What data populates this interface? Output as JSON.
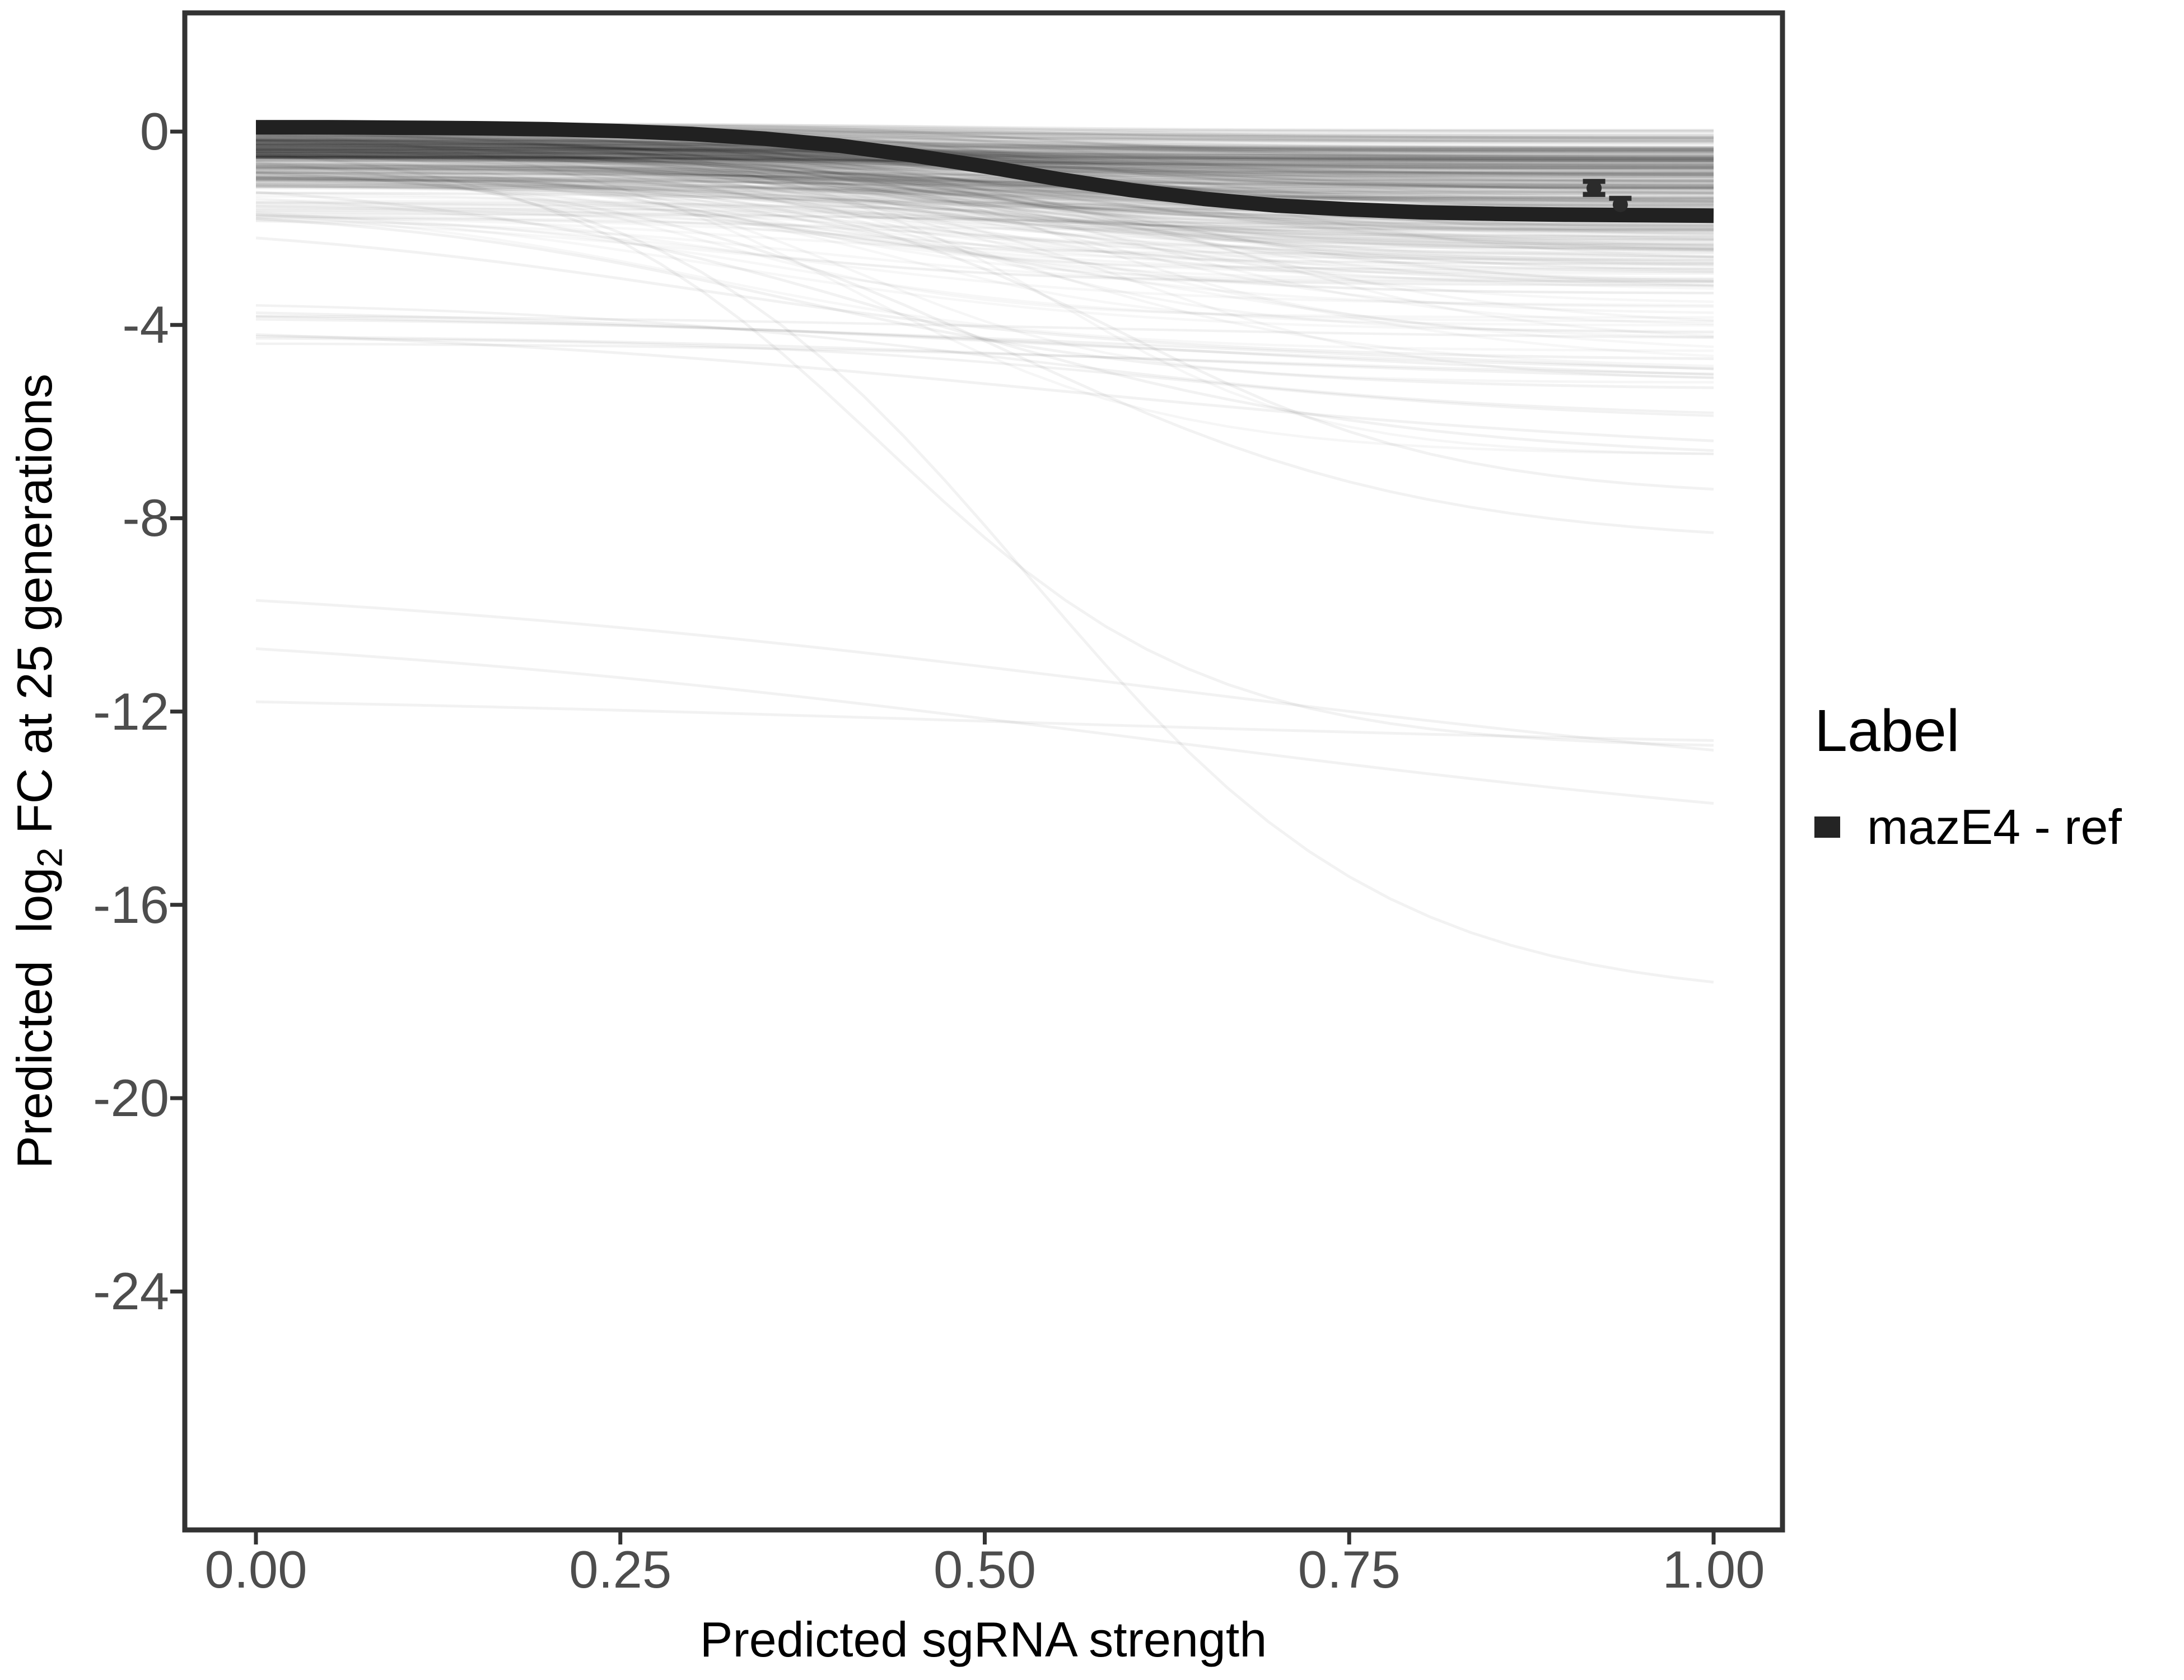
{
  "figure": {
    "background": "#ffffff"
  },
  "axes": {
    "x": {
      "title": "Predicted sgRNA strength",
      "tick_labels": [
        "0.00",
        "0.25",
        "0.50",
        "0.75",
        "1.00"
      ],
      "tick_values": [
        0,
        0.25,
        0.5,
        0.75,
        1
      ]
    },
    "y": {
      "title_pre": "Predicted  log",
      "title_sub": "2",
      "title_post": " FC at 25 generations",
      "tick_labels": [
        "0",
        "-4",
        "-8",
        "-12",
        "-16",
        "-20",
        "-24"
      ],
      "tick_values": [
        0,
        -4,
        -8,
        -12,
        -16,
        -20,
        -24
      ]
    }
  },
  "legend": {
    "title": "Label",
    "entries": [
      {
        "label": "mazE4 - ref",
        "color": "#242424"
      }
    ]
  },
  "colors": {
    "background": "#ffffff",
    "panel_border": "#333333",
    "axis_tick": "#333333",
    "axis_text": "#4d4d4d",
    "axis_title": "#000000",
    "reference_line": "#212121",
    "ensemble_line": "#000000",
    "point": "#2b2b2b"
  },
  "chart_data": {
    "type": "line",
    "title": "",
    "xlabel": "Predicted sgRNA strength",
    "ylabel": "Predicted log2 FC at 25 generations",
    "xlim": [
      0,
      1
    ],
    "ylim": [
      -27.5,
      1
    ],
    "x_ticks": [
      0,
      0.25,
      0.5,
      0.75,
      1
    ],
    "y_ticks": [
      0,
      -4,
      -8,
      -12,
      -16,
      -20,
      -24
    ],
    "grid": false,
    "legend_position": "right",
    "reference_curve": {
      "name": "mazE4 - ref",
      "color": "#212121",
      "stroke_width": 26,
      "x": [
        0,
        0.05,
        0.1,
        0.15,
        0.2,
        0.25,
        0.3,
        0.35,
        0.4,
        0.45,
        0.5,
        0.55,
        0.6,
        0.65,
        0.7,
        0.75,
        0.8,
        0.85,
        0.9,
        0.95,
        1
      ],
      "y": [
        0.09,
        0.09,
        0.08,
        0.07,
        0.05,
        0.01,
        -0.05,
        -0.15,
        -0.29,
        -0.49,
        -0.72,
        -0.98,
        -1.21,
        -1.39,
        -1.53,
        -1.61,
        -1.67,
        -1.7,
        -1.72,
        -1.73,
        -1.74
      ],
      "sigmoid": {
        "start": 0.1,
        "end": -1.75,
        "midpoint": 0.52,
        "steepness": 11
      }
    },
    "measured_points": [
      {
        "x": 0.918,
        "y": -1.17,
        "ymin": -1.3,
        "ymax": -1.03
      },
      {
        "x": 0.936,
        "y": -1.51,
        "ymin": -1.64,
        "ymax": -1.38
      }
    ],
    "background_ensemble": {
      "description": "Several hundred translucent grey predicted dose-response sigmoids from sgRNA strength 0 to 1; dense band starts near 0 and ends between 0 and -2.5, sparser tails reach -9.",
      "seed": 12,
      "color": "#000000",
      "stroke_width": 4.5,
      "groups": [
        {
          "n": 290,
          "alpha": 0.03,
          "start": [
            -0.55,
            0.18
          ],
          "drop_base": 0.12,
          "drop_span": 1.9,
          "drop_pow": 2.2,
          "x0": [
            0.34,
            0.6
          ],
          "k": [
            8,
            13
          ]
        },
        {
          "n": 150,
          "alpha": 0.03,
          "start": [
            -1.15,
            -0.15
          ],
          "drop_base": 0.15,
          "drop_span": 2.1,
          "drop_pow": 2.0,
          "x0": [
            0.3,
            0.65
          ],
          "k": [
            6,
            12
          ]
        },
        {
          "n": 55,
          "alpha": 0.03,
          "start": [
            -1.85,
            -0.5
          ],
          "drop_base": 0.25,
          "drop_span": 3.2,
          "drop_pow": 2.0,
          "x0": [
            0.3,
            0.68
          ],
          "k": [
            6,
            12
          ]
        },
        {
          "n": 26,
          "alpha": 0.035,
          "start": [
            -1.2,
            0.0
          ],
          "drop_base": 1.8,
          "drop_span": 5.0,
          "drop_pow": 1.6,
          "x0": [
            0.33,
            0.7
          ],
          "k": [
            7,
            12
          ]
        },
        {
          "n": 7,
          "alpha": 0.05,
          "start": [
            -4.5,
            -3.4
          ],
          "drop_base": 0.2,
          "drop_span": 2.3,
          "drop_pow": 1.0,
          "x0": [
            0.4,
            0.75
          ],
          "k": [
            3,
            7
          ]
        }
      ]
    },
    "outlier_curves": [
      {
        "start": -0.45,
        "end": -12.7,
        "x0": 0.43,
        "k": 9
      },
      {
        "start": -0.65,
        "end": -17.6,
        "x0": 0.53,
        "k": 8
      },
      {
        "start": -0.85,
        "end": -8.3,
        "x0": 0.52,
        "k": 7
      },
      {
        "start": -1.25,
        "end": -6.6,
        "x0": 0.45,
        "k": 6
      },
      {
        "start": -1.8,
        "end": -5.3,
        "x0": 0.36,
        "k": 7
      },
      {
        "start": -2.2,
        "end": -4.7,
        "x0": 0.3,
        "k": 6
      },
      {
        "start": -0.95,
        "end": -7.4,
        "x0": 0.6,
        "k": 9
      },
      {
        "start": -3.75,
        "end": -4.9,
        "x0": 0.5,
        "k": 4
      },
      {
        "start": -4.2,
        "end": -6.4,
        "x0": 0.55,
        "k": 4
      },
      {
        "start": -9.7,
        "end": -12.8,
        "x0": 0.62,
        "k": 3
      },
      {
        "start": -10.7,
        "end": -13.9,
        "x0": 0.6,
        "k": 3
      },
      {
        "start": -11.8,
        "end": -12.6,
        "x0": 0.5,
        "k": 3
      }
    ],
    "outlier_alpha": 0.05,
    "outlier_stroke_width": 5
  }
}
